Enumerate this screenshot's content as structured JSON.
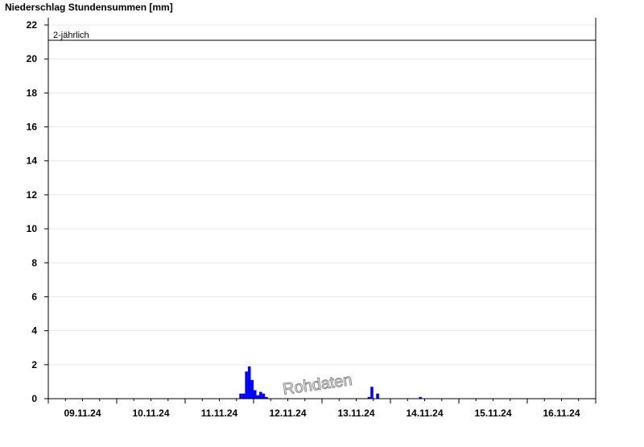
{
  "chart_data": {
    "type": "bar",
    "title": "Niederschlag Stundensummen [mm]",
    "xlabel": "",
    "ylabel": "",
    "ylim": [
      0,
      22.5
    ],
    "yticks": [
      0,
      2,
      4,
      6,
      8,
      10,
      12,
      14,
      16,
      18,
      20,
      22
    ],
    "xrange": [
      "2024-11-09 00:00",
      "2024-11-17 00:00"
    ],
    "xtick_labels": [
      "09.11.24",
      "10.11.24",
      "11.11.24",
      "12.11.24",
      "13.11.24",
      "14.11.24",
      "15.11.24",
      "16.11.24"
    ],
    "grid": true,
    "bar_color": "#0000ff",
    "threshold": {
      "label": "2-jährlich",
      "value": 21.1
    },
    "watermark": "Rohdaten",
    "points": [
      {
        "x": "2024-11-11 19:00",
        "y": 0.3
      },
      {
        "x": "2024-11-11 20:00",
        "y": 0.3
      },
      {
        "x": "2024-11-11 21:00",
        "y": 1.6
      },
      {
        "x": "2024-11-11 22:00",
        "y": 1.9
      },
      {
        "x": "2024-11-11 23:00",
        "y": 1.1
      },
      {
        "x": "2024-11-12 00:00",
        "y": 0.5
      },
      {
        "x": "2024-11-12 01:00",
        "y": 0.2
      },
      {
        "x": "2024-11-12 02:00",
        "y": 0.4
      },
      {
        "x": "2024-11-12 03:00",
        "y": 0.3
      },
      {
        "x": "2024-11-12 04:00",
        "y": 0.1
      },
      {
        "x": "2024-11-13 16:00",
        "y": 0.1
      },
      {
        "x": "2024-11-13 17:00",
        "y": 0.7
      },
      {
        "x": "2024-11-13 19:00",
        "y": 0.3
      },
      {
        "x": "2024-11-14 10:00",
        "y": 0.1
      }
    ]
  }
}
